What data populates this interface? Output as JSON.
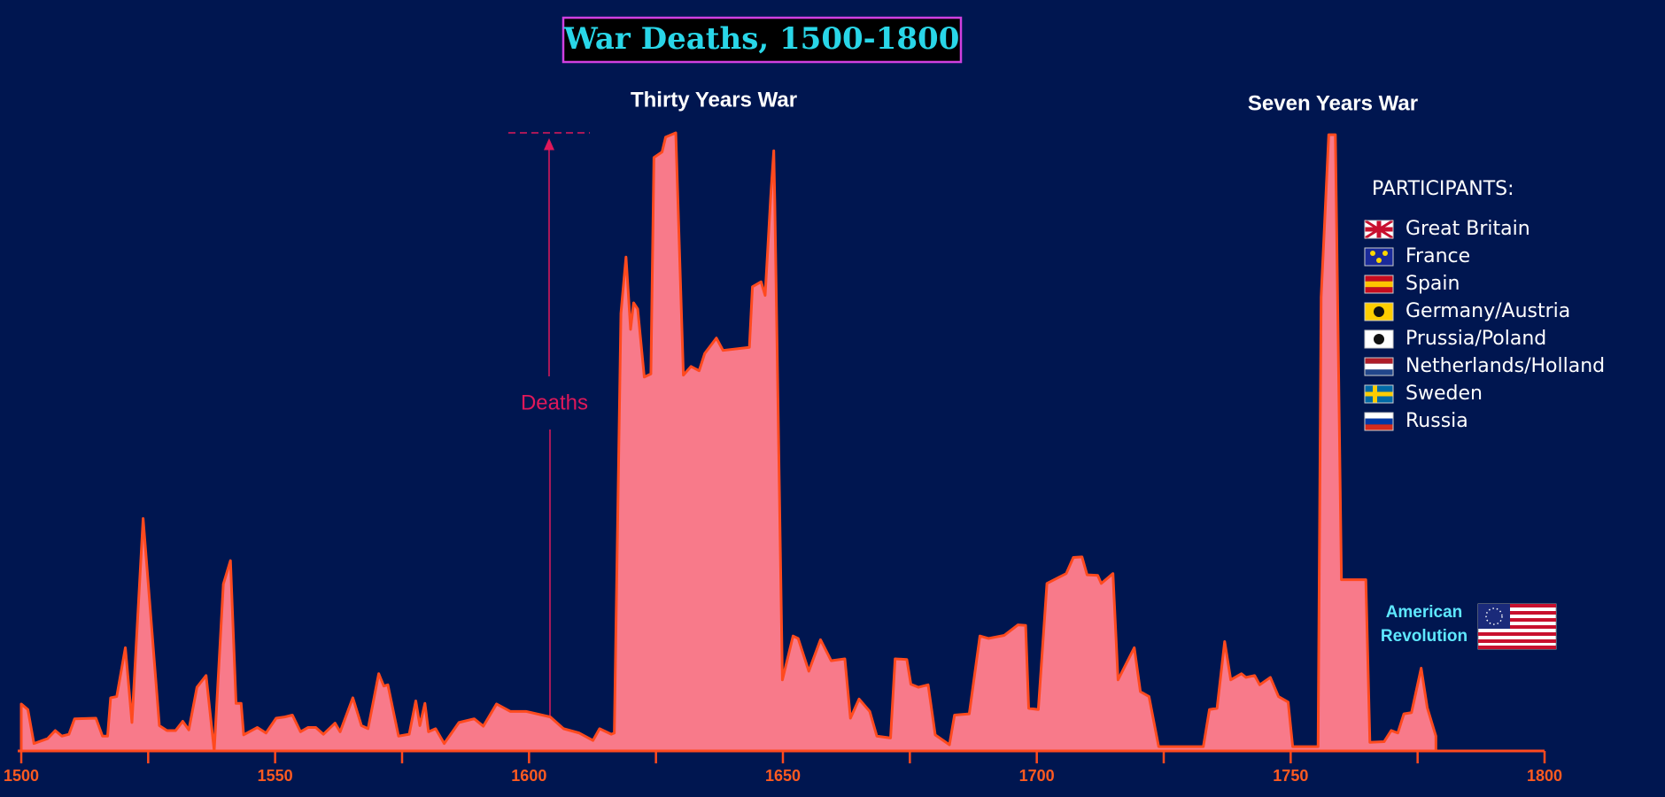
{
  "chart_data": {
    "type": "area",
    "title": "War Deaths, 1500-1800",
    "x": [
      1500,
      1501.3,
      1502.5,
      1505.2,
      1506.7,
      1508,
      1509.4,
      1510.5,
      1514.7,
      1516,
      1517,
      1517.6,
      1518.8,
      1520.5,
      1521.8,
      1524,
      1527.2,
      1528.7,
      1530.4,
      1531.8,
      1533,
      1534.6,
      1536.4,
      1538,
      1539.8,
      1541.2,
      1542.3,
      1543.3,
      1543.8,
      1546.5,
      1548.2,
      1550.2,
      1551.9,
      1553.4,
      1555,
      1556.5,
      1558,
      1559.5,
      1561.8,
      1562.8,
      1565.3,
      1567,
      1568.3,
      1570.4,
      1571.4,
      1572.2,
      1574.3,
      1576.4,
      1577.7,
      1578.5,
      1579.5,
      1580.2,
      1581.6,
      1583.3,
      1586.2,
      1589.2,
      1591,
      1593.6,
      1596.3,
      1599.4,
      1604.2,
      1606.8,
      1609.9,
      1612.6,
      1613.9,
      1616.2,
      1616.8,
      1618.1,
      1619.1,
      1620,
      1620.6,
      1621.4,
      1622.7,
      1624,
      1624.6,
      1626.2,
      1626.9,
      1628.9,
      1630.4,
      1631.9,
      1633.5,
      1634.6,
      1636.9,
      1638.2,
      1643.4,
      1644,
      1645.7,
      1646.5,
      1647.6,
      1648.2,
      1648.4,
      1649.9,
      1652,
      1653,
      1655.1,
      1657.4,
      1659.5,
      1662.2,
      1663.3,
      1665,
      1667.1,
      1668.5,
      1671.2,
      1672.1,
      1674.4,
      1675.2,
      1676.7,
      1678.6,
      1680,
      1682.8,
      1683.8,
      1686.7,
      1688.8,
      1690.5,
      1693.6,
      1696.3,
      1697.8,
      1698.4,
      1700.3,
      1702,
      1705.8,
      1707.2,
      1708.9,
      1709.9,
      1712,
      1712.7,
      1715,
      1716,
      1719.2,
      1720.4,
      1722.1,
      1724,
      1732.8,
      1734,
      1735.5,
      1737,
      1738.2,
      1740.3,
      1741.2,
      1742.9,
      1743.9,
      1746,
      1747.6,
      1749.5,
      1750.4,
      1755.4,
      1756,
      1757.5,
      1758.8,
      1760,
      1764.8,
      1765.6,
      1768.4,
      1769.8,
      1771.1,
      1772.3,
      1773.8,
      1775.7,
      1776.9,
      1778.6
    ],
    "values": [
      7.6,
      6.7,
      1.2,
      2,
      3.3,
      2.4,
      2.7,
      5.2,
      5.3,
      2.4,
      2.4,
      8.6,
      8.8,
      16.7,
      4.6,
      37.6,
      4.1,
      3.3,
      3.3,
      4.8,
      3.4,
      10.3,
      12.2,
      0,
      27,
      30.8,
      7.7,
      7.7,
      2.6,
      3.8,
      2.9,
      5.3,
      5.5,
      5.8,
      3.1,
      3.8,
      3.8,
      2.7,
      4.5,
      3.1,
      8.6,
      4.1,
      3.6,
      12.5,
      10.5,
      10.7,
      2.4,
      2.7,
      8.1,
      4.1,
      7.7,
      3.1,
      3.6,
      1.2,
      4.6,
      5.2,
      4,
      7.6,
      6.4,
      6.4,
      5.5,
      3.6,
      2.9,
      1.7,
      3.6,
      2.7,
      2.9,
      70.8,
      79.9,
      68.2,
      72.5,
      71.5,
      60.5,
      61,
      96,
      96.9,
      99.3,
      100,
      60.8,
      62.2,
      61.5,
      64.3,
      66.8,
      64.8,
      65.3,
      75.1,
      75.9,
      73.7,
      89.7,
      97.1,
      88.8,
      11.5,
      18.6,
      18.2,
      12.9,
      18,
      14.6,
      14.9,
      5.3,
      8.4,
      6.4,
      2.4,
      2.1,
      14.9,
      14.8,
      10.8,
      10.3,
      10.7,
      2.6,
      1,
      5.8,
      6,
      18.6,
      18.2,
      18.7,
      20.4,
      20.3,
      6.9,
      6.7,
      27.1,
      28.7,
      31.3,
      31.4,
      28.5,
      28.4,
      27.1,
      28.7,
      11.5,
      16.7,
      9.6,
      8.8,
      0.7,
      0.7,
      6.7,
      6.9,
      17.7,
      11.5,
      12.5,
      11.9,
      12.2,
      10.7,
      11.9,
      8.8,
      7.9,
      0.7,
      0.7,
      73.4,
      99.7,
      99.7,
      27.7,
      27.7,
      1.4,
      1.5,
      3.3,
      2.9,
      6,
      6.2,
      13.4,
      7,
      2.4
    ],
    "color": "#f87a8a",
    "line_color": "#ff4a1e",
    "xlim": [
      1500,
      1800
    ],
    "ylim": [
      0,
      100
    ],
    "xticks": [
      1500,
      1550,
      1600,
      1650,
      1700,
      1750,
      1800
    ],
    "minor_xticks": [
      1525,
      1575,
      1625,
      1675,
      1725,
      1775
    ],
    "y_label": "Deaths",
    "annotations": [
      "Thirty Years War",
      "Seven Years War",
      "American Revolution"
    ],
    "legend_title": "PARTICIPANTS:",
    "participants": [
      "Great Britain",
      "France",
      "Spain",
      "Germany/Austria",
      "Prussia/Poland",
      "Netherlands/Holland",
      "Sweden",
      "Russia"
    ]
  }
}
